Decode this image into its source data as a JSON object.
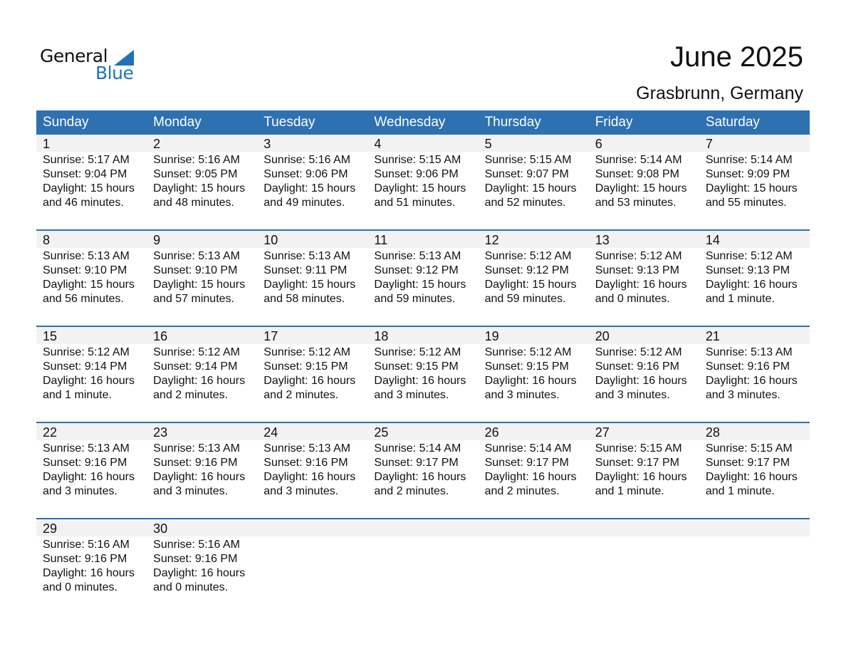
{
  "logo": {
    "line1": "General",
    "line2": "Blue"
  },
  "title": "June 2025",
  "location": "Grasbrunn, Germany",
  "weekdays": [
    "Sunday",
    "Monday",
    "Tuesday",
    "Wednesday",
    "Thursday",
    "Friday",
    "Saturday"
  ],
  "colors": {
    "header": "#2e71b1",
    "band": "#f2f2f2",
    "logo_blue": "#1f72bb"
  },
  "weeks": [
    [
      {
        "d": "1",
        "sr": "Sunrise: 5:17 AM",
        "ss": "Sunset: 9:04 PM",
        "dl": "Daylight: 15 hours",
        "dm": "and 46 minutes."
      },
      {
        "d": "2",
        "sr": "Sunrise: 5:16 AM",
        "ss": "Sunset: 9:05 PM",
        "dl": "Daylight: 15 hours",
        "dm": "and 48 minutes."
      },
      {
        "d": "3",
        "sr": "Sunrise: 5:16 AM",
        "ss": "Sunset: 9:06 PM",
        "dl": "Daylight: 15 hours",
        "dm": "and 49 minutes."
      },
      {
        "d": "4",
        "sr": "Sunrise: 5:15 AM",
        "ss": "Sunset: 9:06 PM",
        "dl": "Daylight: 15 hours",
        "dm": "and 51 minutes."
      },
      {
        "d": "5",
        "sr": "Sunrise: 5:15 AM",
        "ss": "Sunset: 9:07 PM",
        "dl": "Daylight: 15 hours",
        "dm": "and 52 minutes."
      },
      {
        "d": "6",
        "sr": "Sunrise: 5:14 AM",
        "ss": "Sunset: 9:08 PM",
        "dl": "Daylight: 15 hours",
        "dm": "and 53 minutes."
      },
      {
        "d": "7",
        "sr": "Sunrise: 5:14 AM",
        "ss": "Sunset: 9:09 PM",
        "dl": "Daylight: 15 hours",
        "dm": "and 55 minutes."
      }
    ],
    [
      {
        "d": "8",
        "sr": "Sunrise: 5:13 AM",
        "ss": "Sunset: 9:10 PM",
        "dl": "Daylight: 15 hours",
        "dm": "and 56 minutes."
      },
      {
        "d": "9",
        "sr": "Sunrise: 5:13 AM",
        "ss": "Sunset: 9:10 PM",
        "dl": "Daylight: 15 hours",
        "dm": "and 57 minutes."
      },
      {
        "d": "10",
        "sr": "Sunrise: 5:13 AM",
        "ss": "Sunset: 9:11 PM",
        "dl": "Daylight: 15 hours",
        "dm": "and 58 minutes."
      },
      {
        "d": "11",
        "sr": "Sunrise: 5:13 AM",
        "ss": "Sunset: 9:12 PM",
        "dl": "Daylight: 15 hours",
        "dm": "and 59 minutes."
      },
      {
        "d": "12",
        "sr": "Sunrise: 5:12 AM",
        "ss": "Sunset: 9:12 PM",
        "dl": "Daylight: 15 hours",
        "dm": "and 59 minutes."
      },
      {
        "d": "13",
        "sr": "Sunrise: 5:12 AM",
        "ss": "Sunset: 9:13 PM",
        "dl": "Daylight: 16 hours",
        "dm": "and 0 minutes."
      },
      {
        "d": "14",
        "sr": "Sunrise: 5:12 AM",
        "ss": "Sunset: 9:13 PM",
        "dl": "Daylight: 16 hours",
        "dm": "and 1 minute."
      }
    ],
    [
      {
        "d": "15",
        "sr": "Sunrise: 5:12 AM",
        "ss": "Sunset: 9:14 PM",
        "dl": "Daylight: 16 hours",
        "dm": "and 1 minute."
      },
      {
        "d": "16",
        "sr": "Sunrise: 5:12 AM",
        "ss": "Sunset: 9:14 PM",
        "dl": "Daylight: 16 hours",
        "dm": "and 2 minutes."
      },
      {
        "d": "17",
        "sr": "Sunrise: 5:12 AM",
        "ss": "Sunset: 9:15 PM",
        "dl": "Daylight: 16 hours",
        "dm": "and 2 minutes."
      },
      {
        "d": "18",
        "sr": "Sunrise: 5:12 AM",
        "ss": "Sunset: 9:15 PM",
        "dl": "Daylight: 16 hours",
        "dm": "and 3 minutes."
      },
      {
        "d": "19",
        "sr": "Sunrise: 5:12 AM",
        "ss": "Sunset: 9:15 PM",
        "dl": "Daylight: 16 hours",
        "dm": "and 3 minutes."
      },
      {
        "d": "20",
        "sr": "Sunrise: 5:12 AM",
        "ss": "Sunset: 9:16 PM",
        "dl": "Daylight: 16 hours",
        "dm": "and 3 minutes."
      },
      {
        "d": "21",
        "sr": "Sunrise: 5:13 AM",
        "ss": "Sunset: 9:16 PM",
        "dl": "Daylight: 16 hours",
        "dm": "and 3 minutes."
      }
    ],
    [
      {
        "d": "22",
        "sr": "Sunrise: 5:13 AM",
        "ss": "Sunset: 9:16 PM",
        "dl": "Daylight: 16 hours",
        "dm": "and 3 minutes."
      },
      {
        "d": "23",
        "sr": "Sunrise: 5:13 AM",
        "ss": "Sunset: 9:16 PM",
        "dl": "Daylight: 16 hours",
        "dm": "and 3 minutes."
      },
      {
        "d": "24",
        "sr": "Sunrise: 5:13 AM",
        "ss": "Sunset: 9:16 PM",
        "dl": "Daylight: 16 hours",
        "dm": "and 3 minutes."
      },
      {
        "d": "25",
        "sr": "Sunrise: 5:14 AM",
        "ss": "Sunset: 9:17 PM",
        "dl": "Daylight: 16 hours",
        "dm": "and 2 minutes."
      },
      {
        "d": "26",
        "sr": "Sunrise: 5:14 AM",
        "ss": "Sunset: 9:17 PM",
        "dl": "Daylight: 16 hours",
        "dm": "and 2 minutes."
      },
      {
        "d": "27",
        "sr": "Sunrise: 5:15 AM",
        "ss": "Sunset: 9:17 PM",
        "dl": "Daylight: 16 hours",
        "dm": "and 1 minute."
      },
      {
        "d": "28",
        "sr": "Sunrise: 5:15 AM",
        "ss": "Sunset: 9:17 PM",
        "dl": "Daylight: 16 hours",
        "dm": "and 1 minute."
      }
    ],
    [
      {
        "d": "29",
        "sr": "Sunrise: 5:16 AM",
        "ss": "Sunset: 9:16 PM",
        "dl": "Daylight: 16 hours",
        "dm": "and 0 minutes."
      },
      {
        "d": "30",
        "sr": "Sunrise: 5:16 AM",
        "ss": "Sunset: 9:16 PM",
        "dl": "Daylight: 16 hours",
        "dm": "and 0 minutes."
      }
    ]
  ]
}
